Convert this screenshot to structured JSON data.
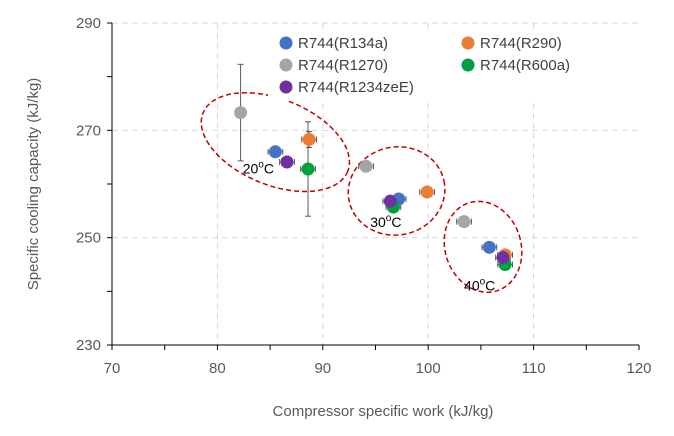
{
  "chart_data": {
    "type": "scatter",
    "title": "",
    "xlabel": "Compressor specific work (kJ/kg)",
    "ylabel": "Specific cooling capacity (kJ/kg)",
    "xlim": [
      70,
      120
    ],
    "ylim": [
      230,
      290
    ],
    "xticks": [
      70,
      80,
      90,
      100,
      110,
      120
    ],
    "yticks": [
      230,
      250,
      270,
      290
    ],
    "grid": true,
    "legend_position": "top-right",
    "series": [
      {
        "name": "R744(R134a)",
        "color": "#4472c4",
        "points": [
          {
            "x": 85.5,
            "y": 266.0,
            "xerr": 0.7,
            "yerr": 0
          },
          {
            "x": 97.2,
            "y": 257.2,
            "xerr": 0.7,
            "yerr": 0
          },
          {
            "x": 105.8,
            "y": 248.2,
            "xerr": 0.7,
            "yerr": 0
          }
        ]
      },
      {
        "name": "R744(R290)",
        "color": "#ed7d31",
        "points": [
          {
            "x": 88.7,
            "y": 268.3,
            "xerr": 0.7,
            "yerr": 1.5
          },
          {
            "x": 99.9,
            "y": 258.5,
            "xerr": 0.7,
            "yerr": 0.8
          },
          {
            "x": 107.3,
            "y": 246.8,
            "xerr": 0.7,
            "yerr": 0
          }
        ]
      },
      {
        "name": "R744(R1270)",
        "color": "#a5a5a5",
        "points": [
          {
            "x": 82.2,
            "y": 273.3,
            "xerr": 0.5,
            "yerr": 9.0
          },
          {
            "x": 94.1,
            "y": 263.3,
            "xerr": 0.7,
            "yerr": 0
          },
          {
            "x": 103.4,
            "y": 253.0,
            "xerr": 0.7,
            "yerr": 0
          }
        ]
      },
      {
        "name": "R744(R600a)",
        "color": "#00a040",
        "points": [
          {
            "x": 88.6,
            "y": 262.8,
            "xerr": 0.7,
            "yerr": 8.8
          },
          {
            "x": 96.7,
            "y": 255.7,
            "xerr": 0.7,
            "yerr": 0
          },
          {
            "x": 107.3,
            "y": 245.0,
            "xerr": 0.7,
            "yerr": 0
          }
        ]
      },
      {
        "name": "R744(R1234zeE)",
        "color": "#7030a0",
        "points": [
          {
            "x": 86.6,
            "y": 264.1,
            "xerr": 0.7,
            "yerr": 0
          },
          {
            "x": 96.4,
            "y": 256.8,
            "xerr": 0.7,
            "yerr": 0
          },
          {
            "x": 107.1,
            "y": 246.3,
            "xerr": 0.7,
            "yerr": 0
          }
        ]
      }
    ],
    "annotations": [
      {
        "text": "20°C",
        "x": 82.4,
        "y": 262.0,
        "group": {
          "cx": 85.5,
          "cy": 267.8,
          "rx": 7.4,
          "ry": 8.0,
          "angle": 22
        }
      },
      {
        "text": "30°C",
        "x": 94.5,
        "y": 252.0,
        "group": {
          "cx": 97.0,
          "cy": 258.7,
          "rx": 4.6,
          "ry": 8.2,
          "angle": -12
        }
      },
      {
        "text": "40°C",
        "x": 103.4,
        "y": 240.2,
        "group": {
          "cx": 105.2,
          "cy": 248.3,
          "rx": 3.6,
          "ry": 8.6,
          "angle": -18
        }
      }
    ]
  }
}
